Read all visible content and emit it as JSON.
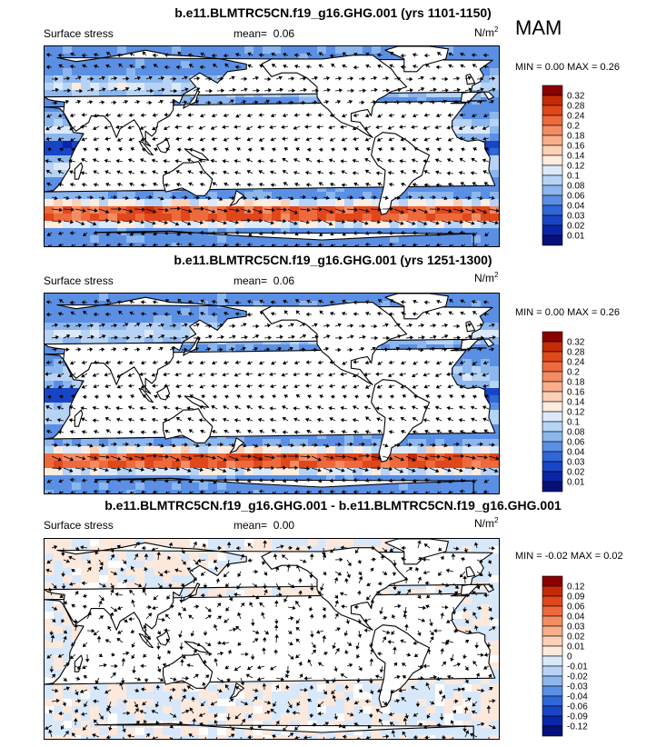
{
  "season": "MAM",
  "units": "N/m",
  "units_sup": "2",
  "panels": [
    {
      "title": "b.e11.BLMTRC5CN.f19_g16.GHG.001 (yrs 1101-1150)",
      "left_label": "Surface stress",
      "mean_label": "mean=",
      "mean_value": "0.06",
      "minmax": "MIN =   0.00 MAX =   0.26",
      "levels": [
        "0.32",
        "0.28",
        "0.24",
        "0.2",
        "0.18",
        "0.16",
        "0.14",
        "0.12",
        "0.1",
        "0.08",
        "0.06",
        "0.04",
        "0.03",
        "0.02",
        "0.01"
      ],
      "colors": {
        "land": "#ffffff"
      }
    },
    {
      "title": "b.e11.BLMTRC5CN.f19_g16.GHG.001 (yrs 1251-1300)",
      "left_label": "Surface stress",
      "mean_label": "mean=",
      "mean_value": "0.06",
      "minmax": "MIN =   0.00 MAX =   0.26",
      "levels": [
        "0.32",
        "0.28",
        "0.24",
        "0.2",
        "0.18",
        "0.16",
        "0.14",
        "0.12",
        "0.1",
        "0.08",
        "0.06",
        "0.04",
        "0.03",
        "0.02",
        "0.01"
      ]
    },
    {
      "title": "b.e11.BLMTRC5CN.f19_g16.GHG.001 - b.e11.BLMTRC5CN.f19_g16.GHG.001",
      "left_label": "Surface stress",
      "mean_label": "mean=",
      "mean_value": "0.00",
      "minmax": "MIN =  -0.02 MAX =   0.02",
      "levels": [
        "0.12",
        "0.09",
        "0.06",
        "0.04",
        "0.03",
        "0.02",
        "0.01",
        "0",
        "-0.01",
        "-0.02",
        "-0.03",
        "-0.04",
        "-0.06",
        "-0.09",
        "-0.12"
      ]
    }
  ],
  "colorbar_colors": {
    "abs": [
      "#8b0000",
      "#c62a07",
      "#e0471b",
      "#ee6a3d",
      "#f48c63",
      "#f8ae8b",
      "#fbd0b6",
      "#feecdf",
      "#dbe9fb",
      "#b6d3f6",
      "#8cb6ee",
      "#5a8fe4",
      "#2f66d8",
      "#1845c6",
      "#0a26a8",
      "#05107a"
    ],
    "diff": [
      "#8b0000",
      "#c62a07",
      "#e0471b",
      "#ee6a3d",
      "#f48c63",
      "#f8ae8b",
      "#fbd0b6",
      "#fde8dc",
      "#d8e8fb",
      "#b6d3f6",
      "#8cb6ee",
      "#5a8fe4",
      "#2f66d8",
      "#1845c6",
      "#0a26a8",
      "#05107a"
    ]
  }
}
